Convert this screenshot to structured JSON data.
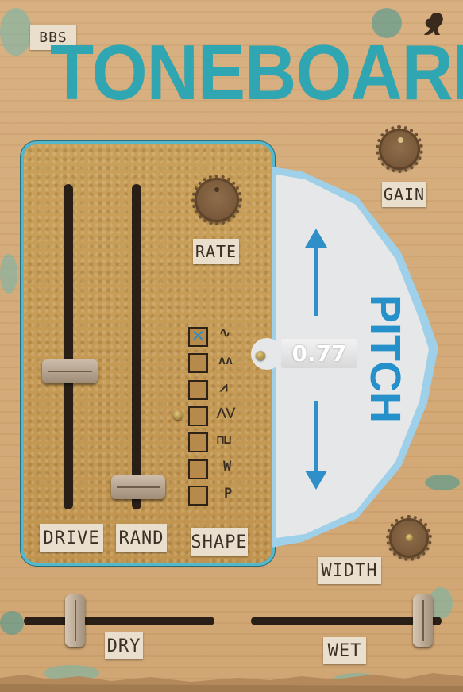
{
  "app": {
    "brand": "BBS",
    "title": "TONEBOARD"
  },
  "controls": {
    "gain_label": "GAIN",
    "rate_label": "RATE",
    "width_label": "WIDTH",
    "drive_label": "DRIVE",
    "rand_label": "RAND",
    "shape_label": "SHAPE",
    "dry_label": "DRY",
    "wet_label": "WET"
  },
  "pitch": {
    "label": "PITCH",
    "value": "0.77"
  },
  "shape_options": [
    {
      "glyph": "∿",
      "selected": true,
      "mark": "✕"
    },
    {
      "glyph": "ʌʌ",
      "selected": false
    },
    {
      "glyph": "⩘",
      "selected": false
    },
    {
      "glyph": "⋀⋁",
      "selected": false
    },
    {
      "glyph": "⊓⊔",
      "selected": false
    },
    {
      "glyph": "W",
      "selected": false
    },
    {
      "glyph": "P",
      "selected": false
    }
  ],
  "colors": {
    "accent": "#2fa6b1",
    "pitch_text": "#2590c9",
    "panel_border": "#53b8cc"
  }
}
